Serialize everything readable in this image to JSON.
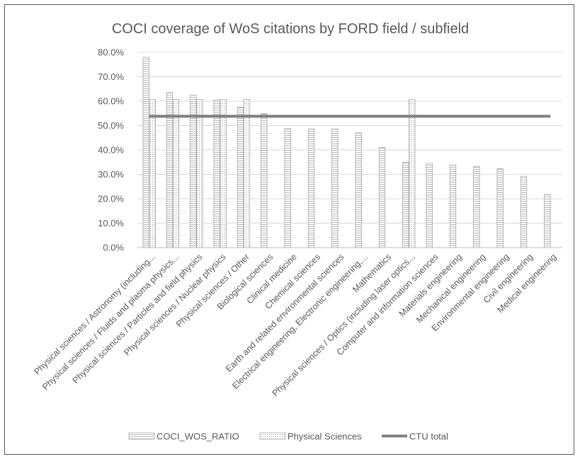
{
  "chart_data": {
    "type": "bar",
    "title": "COCI coverage of WoS citations by FORD field / subfield",
    "xlabel": "",
    "ylabel": "",
    "ylim": [
      0,
      0.8
    ],
    "yticks": [
      "0.0%",
      "10.0%",
      "20.0%",
      "30.0%",
      "40.0%",
      "50.0%",
      "60.0%",
      "70.0%",
      "80.0%"
    ],
    "grid": true,
    "legend_position": "bottom",
    "categories": [
      "Physical sciences / Astronomy (including...",
      "Physical sciences / Fluids and plasma physics...",
      "Physical sciences / Particles and field physics",
      "Physical sciences / Nuclear physics",
      "Physical sciences / Other",
      "Biological sciences",
      "Clinical medicine",
      "Chemical sciences",
      "Earth and related environmental sciences",
      "Electrical engineering, Electronic engineering,...",
      "Mathematics",
      "Physical sciences / Optics (including laser optics...",
      "Computer and information sciences",
      "Materials engineering",
      "Mechanical engineering",
      "Environmental engineering",
      "Civil engineering",
      "Medical engineering"
    ],
    "series": [
      {
        "name": "COCI_WOS_RATIO",
        "values": [
          0.78,
          0.635,
          0.625,
          0.605,
          0.575,
          0.55,
          0.487,
          0.486,
          0.486,
          0.47,
          0.41,
          0.35,
          0.345,
          0.338,
          0.333,
          0.323,
          0.292,
          0.217
        ],
        "pattern": "horizontal-lines"
      },
      {
        "name": "Physical Sciences",
        "values": [
          0.607,
          0.607,
          0.607,
          0.607,
          0.607,
          null,
          null,
          null,
          null,
          null,
          null,
          0.607,
          null,
          null,
          null,
          null,
          null,
          null
        ],
        "pattern": "dots"
      },
      {
        "name": "CTU total",
        "value": 0.538,
        "type": "line",
        "color": "#7f7f7f"
      }
    ],
    "colors": {
      "axis": "#bfbfbf",
      "grid": "#d9d9d9",
      "bar_stroke": "#a6a6a6",
      "text": "#595959"
    }
  }
}
